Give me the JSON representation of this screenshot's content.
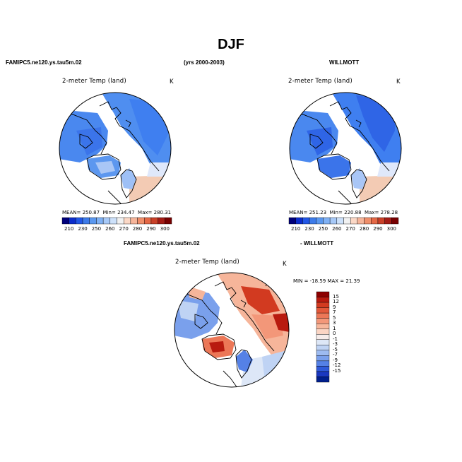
{
  "page": {
    "title": "DJF",
    "left_case": "FAMIPC5.ne120.ys.tau5m.02",
    "years": "(yrs 2000-2003)",
    "right_case": "WILLMOTT",
    "diff_left": "FAMIPC5.ne120.ys.tau5m.02",
    "diff_right": "- WILLMOTT"
  },
  "panels": {
    "model": {
      "title": "2-meter Temp (land)",
      "units": "K",
      "mean_label": "MEAN=",
      "mean": "250.87",
      "min_label": "Min=",
      "min": "234.47",
      "max_label": "Max=",
      "max": "280.31"
    },
    "obs": {
      "title": "2-meter Temp (land)",
      "units": "K",
      "mean_label": "MEAN=",
      "mean": "251.23",
      "min_label": "Min=",
      "min": "220.88",
      "max_label": "Max=",
      "max": "278.28"
    },
    "diff": {
      "title": "2-meter Temp (land)",
      "units": "K",
      "stats": "MIN = -18.59  MAX =  21.39"
    }
  },
  "colorbar_abs": {
    "ticks": [
      "210",
      "230",
      "250",
      "260",
      "270",
      "280",
      "290",
      "300"
    ],
    "colors": [
      "#00007a",
      "#0c2dcb",
      "#2257e6",
      "#3d7be9",
      "#5b98ef",
      "#80b1f4",
      "#a7c9f7",
      "#cde1fa",
      "#f1f1f1",
      "#fbd8c6",
      "#f6b59a",
      "#ef8f6b",
      "#e46846",
      "#c94129",
      "#a31b15",
      "#780000"
    ]
  },
  "colorbar_diff": {
    "ticks": [
      "15",
      "12",
      "9",
      "7",
      "5",
      "3",
      "1",
      "0",
      "-1",
      "-3",
      "-5",
      "-7",
      "-9",
      "-12",
      "-15"
    ],
    "colors": [
      "#8c0000",
      "#b81a0f",
      "#d23a20",
      "#e2583a",
      "#ec7757",
      "#f39779",
      "#f8b79c",
      "#fbd5c4",
      "#f6ecea",
      "#dde7f7",
      "#bfd3f4",
      "#9dbbf1",
      "#7aa0ec",
      "#5581e6",
      "#2f5ad9",
      "#1a38c0",
      "#001f8c"
    ]
  }
}
